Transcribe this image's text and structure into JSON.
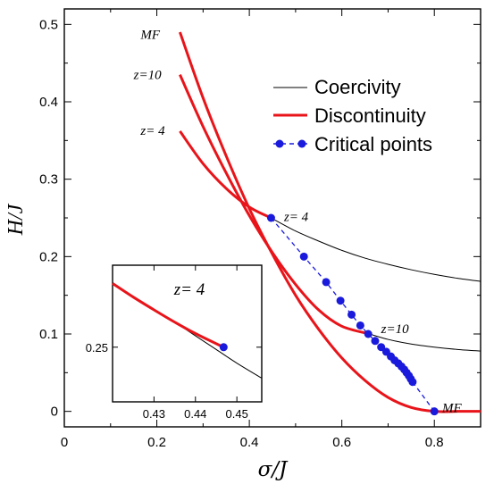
{
  "chart_data": {
    "type": "line",
    "xlabel": "σ/J",
    "ylabel": "H/J",
    "xlim": [
      0,
      0.9
    ],
    "ylim": [
      -0.02,
      0.52
    ],
    "x_ticks": [
      0,
      0.2,
      0.4,
      0.6,
      0.8
    ],
    "y_ticks": [
      0,
      0.1,
      0.2,
      0.3,
      0.4,
      0.5
    ],
    "x_tick_labels": [
      "0",
      "0.2",
      "0.4",
      "0.6",
      "0.8"
    ],
    "y_tick_labels": [
      "0",
      "0.1",
      "0.2",
      "0.3",
      "0.4",
      "0.5"
    ],
    "legend": {
      "placement": "top-right",
      "entries": [
        "Coercivity",
        "Discontinuity",
        "Critical points"
      ]
    },
    "colors": {
      "coercivity": "#000000",
      "discontinuity": "#e8141a",
      "critical": "#1a1adc"
    },
    "series": [
      {
        "name": "Coercivity",
        "curves": [
          {
            "label": "z= 4",
            "x": [
              0.447,
              0.5,
              0.55,
              0.6,
              0.65,
              0.7,
              0.75,
              0.8,
              0.85,
              0.9
            ],
            "y": [
              0.25,
              0.233,
              0.22,
              0.208,
              0.198,
              0.19,
              0.183,
              0.177,
              0.172,
              0.168
            ]
          },
          {
            "label": "z=10",
            "x": [
              0.66,
              0.7,
              0.75,
              0.8,
              0.85,
              0.9
            ],
            "y": [
              0.1,
              0.093,
              0.087,
              0.083,
              0.08,
              0.078
            ]
          }
        ]
      },
      {
        "name": "Discontinuity",
        "curves": [
          {
            "label": "MF",
            "x": [
              0.25,
              0.3,
              0.35,
              0.4,
              0.45,
              0.5,
              0.55,
              0.6,
              0.65,
              0.7,
              0.75,
              0.8,
              0.85,
              0.9
            ],
            "y": [
              0.49,
              0.405,
              0.33,
              0.262,
              0.203,
              0.15,
              0.106,
              0.069,
              0.04,
              0.018,
              0.005,
              0.0,
              0.0,
              0.0
            ]
          },
          {
            "label": "z=10",
            "x": [
              0.25,
              0.3,
              0.35,
              0.4,
              0.45,
              0.5,
              0.55,
              0.6,
              0.66
            ],
            "y": [
              0.435,
              0.368,
              0.308,
              0.253,
              0.205,
              0.164,
              0.131,
              0.11,
              0.1
            ]
          },
          {
            "label": "z= 4",
            "x": [
              0.25,
              0.3,
              0.35,
              0.4,
              0.447
            ],
            "y": [
              0.362,
              0.32,
              0.288,
              0.264,
              0.25
            ]
          }
        ]
      },
      {
        "name": "Critical points",
        "x": [
          0.447,
          0.518,
          0.566,
          0.597,
          0.621,
          0.64,
          0.657,
          0.672,
          0.685,
          0.696,
          0.706,
          0.714,
          0.722,
          0.729,
          0.735,
          0.74,
          0.745,
          0.749,
          0.753,
          0.8
        ],
        "y": [
          0.25,
          0.2,
          0.167,
          0.143,
          0.125,
          0.111,
          0.1,
          0.091,
          0.083,
          0.077,
          0.071,
          0.066,
          0.062,
          0.058,
          0.054,
          0.05,
          0.046,
          0.042,
          0.038,
          0.0
        ]
      }
    ],
    "annotations": [
      {
        "text": "MF",
        "x": 0.165,
        "y": 0.487
      },
      {
        "text": "z=10",
        "x": 0.15,
        "y": 0.435
      },
      {
        "text": "z= 4",
        "x": 0.165,
        "y": 0.363
      },
      {
        "text": "z= 4",
        "x": 0.475,
        "y": 0.252
      },
      {
        "text": "z=10",
        "x": 0.685,
        "y": 0.107
      },
      {
        "text": "MF",
        "x": 0.817,
        "y": 0.005
      }
    ],
    "inset": {
      "title": "z= 4",
      "xlim": [
        0.42,
        0.456
      ],
      "ylim": [
        0.238,
        0.268
      ],
      "x_tick_labels": [
        "0.43",
        "0.44",
        "0.45"
      ],
      "y_tick_labels": [
        "0.25"
      ],
      "x_ticks": [
        0.43,
        0.44,
        0.45
      ],
      "y_ticks": [
        0.25
      ],
      "coercivity": {
        "x": [
          0.435,
          0.44,
          0.445,
          0.45,
          0.456
        ],
        "y": [
          0.2555,
          0.2525,
          0.2495,
          0.2465,
          0.2432
        ]
      },
      "discontinuity": {
        "x": [
          0.42,
          0.425,
          0.43,
          0.435,
          0.44,
          0.4468
        ],
        "y": [
          0.264,
          0.261,
          0.2582,
          0.2555,
          0.253,
          0.25
        ]
      },
      "critical_point": {
        "x": 0.4468,
        "y": 0.25
      }
    }
  }
}
